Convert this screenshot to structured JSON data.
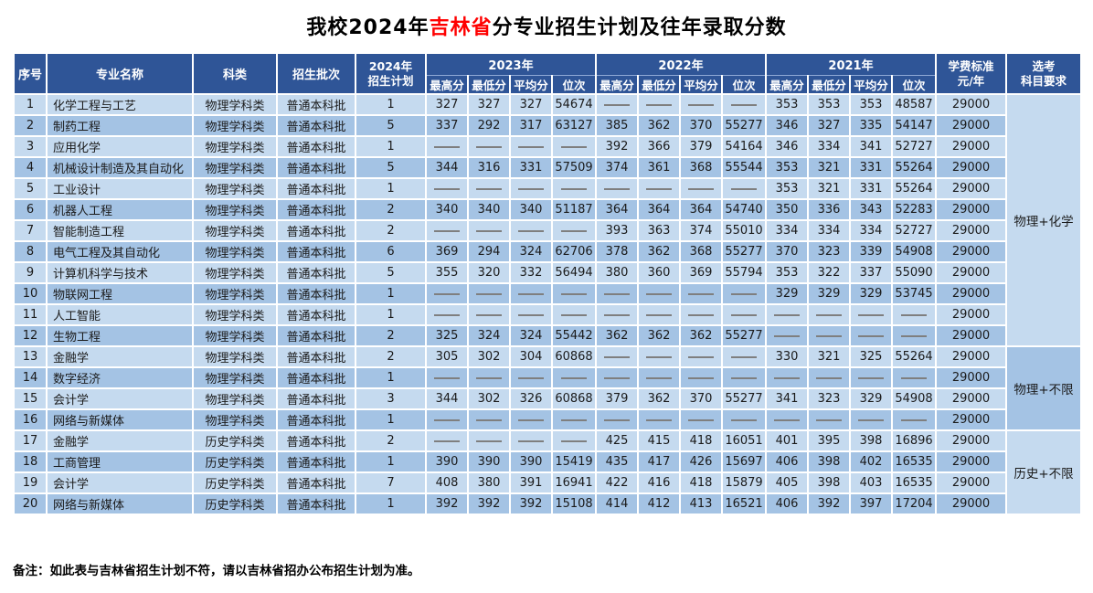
{
  "title": {
    "prefix": "我校2024年",
    "highlight": "吉林省",
    "suffix": "分专业招生计划及往年录取分数"
  },
  "note": "备注：如此表与吉林省招生计划不符，请以吉林省招办公布招生计划为准。",
  "colors": {
    "header_bg": "#2F5597",
    "row_light": "#C5DAEF",
    "row_dark": "#A4C3E4",
    "highlight_red": "#FF0000",
    "dash_gray": "#7F7F7F"
  },
  "table": {
    "headers": {
      "no": "序号",
      "major": "专业名称",
      "category": "科类",
      "batch": "招生批次",
      "plan2024": "2024年\n招生计划",
      "years": [
        "2023年",
        "2022年",
        "2021年"
      ],
      "score_cols": [
        "最高分",
        "最低分",
        "平均分",
        "位次"
      ],
      "tuition": "学费标准\n元/年",
      "subjects": "选考\n科目要求"
    },
    "empty_marker": "——",
    "rows": [
      {
        "no": "1",
        "major": "化学工程与工艺",
        "category": "物理学科类",
        "batch": "普通本科批",
        "plan": "1",
        "s2023": [
          "327",
          "327",
          "327",
          "54674"
        ],
        "s2022": [
          "——",
          "——",
          "——",
          "——"
        ],
        "s2021": [
          "353",
          "353",
          "353",
          "48587"
        ],
        "tuition": "29000"
      },
      {
        "no": "2",
        "major": "制药工程",
        "category": "物理学科类",
        "batch": "普通本科批",
        "plan": "5",
        "s2023": [
          "337",
          "292",
          "317",
          "63127"
        ],
        "s2022": [
          "385",
          "362",
          "370",
          "55277"
        ],
        "s2021": [
          "346",
          "327",
          "335",
          "54147"
        ],
        "tuition": "29000"
      },
      {
        "no": "3",
        "major": "应用化学",
        "category": "物理学科类",
        "batch": "普通本科批",
        "plan": "1",
        "s2023": [
          "——",
          "——",
          "——",
          "——"
        ],
        "s2022": [
          "392",
          "366",
          "379",
          "54164"
        ],
        "s2021": [
          "346",
          "334",
          "341",
          "52727"
        ],
        "tuition": "29000"
      },
      {
        "no": "4",
        "major": "机械设计制造及其自动化",
        "category": "物理学科类",
        "batch": "普通本科批",
        "plan": "5",
        "s2023": [
          "344",
          "316",
          "331",
          "57509"
        ],
        "s2022": [
          "374",
          "361",
          "368",
          "55544"
        ],
        "s2021": [
          "353",
          "321",
          "331",
          "55264"
        ],
        "tuition": "29000"
      },
      {
        "no": "5",
        "major": "工业设计",
        "category": "物理学科类",
        "batch": "普通本科批",
        "plan": "1",
        "s2023": [
          "——",
          "——",
          "——",
          "——"
        ],
        "s2022": [
          "——",
          "——",
          "——",
          "——"
        ],
        "s2021": [
          "353",
          "321",
          "331",
          "55264"
        ],
        "tuition": "29000"
      },
      {
        "no": "6",
        "major": "机器人工程",
        "category": "物理学科类",
        "batch": "普通本科批",
        "plan": "2",
        "s2023": [
          "340",
          "340",
          "340",
          "51187"
        ],
        "s2022": [
          "364",
          "364",
          "364",
          "54740"
        ],
        "s2021": [
          "350",
          "336",
          "343",
          "52283"
        ],
        "tuition": "29000"
      },
      {
        "no": "7",
        "major": "智能制造工程",
        "category": "物理学科类",
        "batch": "普通本科批",
        "plan": "2",
        "s2023": [
          "——",
          "——",
          "——",
          "——"
        ],
        "s2022": [
          "393",
          "363",
          "374",
          "55010"
        ],
        "s2021": [
          "334",
          "334",
          "334",
          "52727"
        ],
        "tuition": "29000"
      },
      {
        "no": "8",
        "major": "电气工程及其自动化",
        "category": "物理学科类",
        "batch": "普通本科批",
        "plan": "6",
        "s2023": [
          "369",
          "294",
          "324",
          "62706"
        ],
        "s2022": [
          "378",
          "362",
          "368",
          "55277"
        ],
        "s2021": [
          "370",
          "323",
          "339",
          "54908"
        ],
        "tuition": "29000"
      },
      {
        "no": "9",
        "major": "计算机科学与技术",
        "category": "物理学科类",
        "batch": "普通本科批",
        "plan": "5",
        "s2023": [
          "355",
          "320",
          "332",
          "56494"
        ],
        "s2022": [
          "380",
          "360",
          "369",
          "55794"
        ],
        "s2021": [
          "353",
          "322",
          "337",
          "55090"
        ],
        "tuition": "29000"
      },
      {
        "no": "10",
        "major": "物联网工程",
        "category": "物理学科类",
        "batch": "普通本科批",
        "plan": "1",
        "s2023": [
          "——",
          "——",
          "——",
          "——"
        ],
        "s2022": [
          "——",
          "——",
          "——",
          "——"
        ],
        "s2021": [
          "329",
          "329",
          "329",
          "53745"
        ],
        "tuition": "29000"
      },
      {
        "no": "11",
        "major": "人工智能",
        "category": "物理学科类",
        "batch": "普通本科批",
        "plan": "1",
        "s2023": [
          "——",
          "——",
          "——",
          "——"
        ],
        "s2022": [
          "——",
          "——",
          "——",
          "——"
        ],
        "s2021": [
          "——",
          "——",
          "——",
          "——"
        ],
        "tuition": "29000"
      },
      {
        "no": "12",
        "major": "生物工程",
        "category": "物理学科类",
        "batch": "普通本科批",
        "plan": "2",
        "s2023": [
          "325",
          "324",
          "324",
          "55442"
        ],
        "s2022": [
          "362",
          "362",
          "362",
          "55277"
        ],
        "s2021": [
          "——",
          "——",
          "——",
          "——"
        ],
        "tuition": "29000"
      },
      {
        "no": "13",
        "major": "金融学",
        "category": "物理学科类",
        "batch": "普通本科批",
        "plan": "2",
        "s2023": [
          "305",
          "302",
          "304",
          "60868"
        ],
        "s2022": [
          "——",
          "——",
          "——",
          "——"
        ],
        "s2021": [
          "330",
          "321",
          "325",
          "55264"
        ],
        "tuition": "29000"
      },
      {
        "no": "14",
        "major": "数字经济",
        "category": "物理学科类",
        "batch": "普通本科批",
        "plan": "1",
        "s2023": [
          "——",
          "——",
          "——",
          "——"
        ],
        "s2022": [
          "——",
          "——",
          "——",
          "——"
        ],
        "s2021": [
          "——",
          "——",
          "——",
          "——"
        ],
        "tuition": "29000"
      },
      {
        "no": "15",
        "major": "会计学",
        "category": "物理学科类",
        "batch": "普通本科批",
        "plan": "3",
        "s2023": [
          "344",
          "302",
          "326",
          "60868"
        ],
        "s2022": [
          "379",
          "362",
          "370",
          "55277"
        ],
        "s2021": [
          "341",
          "323",
          "329",
          "54908"
        ],
        "tuition": "29000"
      },
      {
        "no": "16",
        "major": "网络与新媒体",
        "category": "物理学科类",
        "batch": "普通本科批",
        "plan": "1",
        "s2023": [
          "——",
          "——",
          "——",
          "——"
        ],
        "s2022": [
          "——",
          "——",
          "——",
          "——"
        ],
        "s2021": [
          "——",
          "——",
          "——",
          "——"
        ],
        "tuition": "29000"
      },
      {
        "no": "17",
        "major": "金融学",
        "category": "历史学科类",
        "batch": "普通本科批",
        "plan": "2",
        "s2023": [
          "——",
          "——",
          "——",
          "——"
        ],
        "s2022": [
          "425",
          "415",
          "418",
          "16051"
        ],
        "s2021": [
          "401",
          "395",
          "398",
          "16896"
        ],
        "tuition": "29000"
      },
      {
        "no": "18",
        "major": "工商管理",
        "category": "历史学科类",
        "batch": "普通本科批",
        "plan": "1",
        "s2023": [
          "390",
          "390",
          "390",
          "15419"
        ],
        "s2022": [
          "435",
          "417",
          "426",
          "15697"
        ],
        "s2021": [
          "406",
          "398",
          "402",
          "16535"
        ],
        "tuition": "29000"
      },
      {
        "no": "19",
        "major": "会计学",
        "category": "历史学科类",
        "batch": "普通本科批",
        "plan": "7",
        "s2023": [
          "408",
          "380",
          "391",
          "16941"
        ],
        "s2022": [
          "422",
          "416",
          "418",
          "15879"
        ],
        "s2021": [
          "405",
          "398",
          "403",
          "16535"
        ],
        "tuition": "29000"
      },
      {
        "no": "20",
        "major": "网络与新媒体",
        "category": "历史学科类",
        "batch": "普通本科批",
        "plan": "1",
        "s2023": [
          "392",
          "392",
          "392",
          "15108"
        ],
        "s2022": [
          "414",
          "412",
          "413",
          "16521"
        ],
        "s2021": [
          "406",
          "392",
          "397",
          "17204"
        ],
        "tuition": "29000"
      }
    ],
    "subject_groups": [
      {
        "label": "物理+化学",
        "start": 1,
        "end": 12,
        "shade": "light"
      },
      {
        "label": "物理+不限",
        "start": 13,
        "end": 16,
        "shade": "dark"
      },
      {
        "label": "历史+不限",
        "start": 17,
        "end": 20,
        "shade": "light"
      }
    ]
  }
}
